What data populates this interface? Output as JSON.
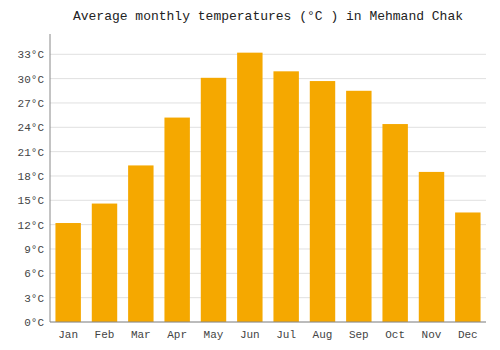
{
  "chart_data": {
    "type": "bar",
    "title": "Average monthly temperatures (°C ) in Mehmand Chak",
    "categories": [
      "Jan",
      "Feb",
      "Mar",
      "Apr",
      "May",
      "Jun",
      "Jul",
      "Aug",
      "Sep",
      "Oct",
      "Nov",
      "Dec"
    ],
    "values": [
      12.2,
      14.6,
      19.3,
      25.2,
      30.1,
      33.2,
      30.9,
      29.7,
      28.5,
      24.4,
      18.5,
      13.5
    ],
    "color": "#F5A800",
    "ylim": [
      0,
      35.5
    ],
    "yticks": [
      {
        "value": 0,
        "label": "0°C"
      },
      {
        "value": 3,
        "label": "3°C"
      },
      {
        "value": 6,
        "label": "6°C"
      },
      {
        "value": 9,
        "label": "9°C"
      },
      {
        "value": 12,
        "label": "12°C"
      },
      {
        "value": 15,
        "label": "15°C"
      },
      {
        "value": 18,
        "label": "18°C"
      },
      {
        "value": 21,
        "label": "21°C"
      },
      {
        "value": 24,
        "label": "24°C"
      },
      {
        "value": 27,
        "label": "27°C"
      },
      {
        "value": 30,
        "label": "30°C"
      },
      {
        "value": 33,
        "label": "33°C"
      }
    ],
    "grid": true
  }
}
